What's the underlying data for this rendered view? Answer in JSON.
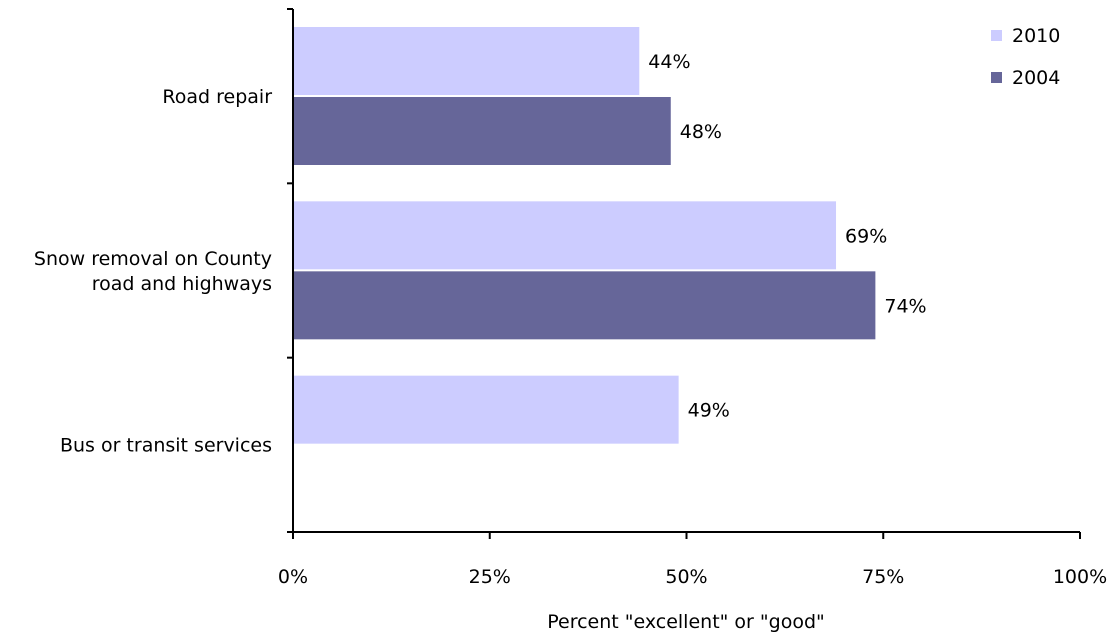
{
  "chart_data": {
    "type": "bar",
    "orientation": "horizontal",
    "categories": [
      [
        "Road repair"
      ],
      [
        "Snow removal on County",
        "road and highways"
      ],
      [
        "Bus or transit services"
      ]
    ],
    "series": [
      {
        "name": "2010",
        "color": "#ccccff",
        "values": [
          44,
          69,
          49
        ]
      },
      {
        "name": "2004",
        "color": "#666699",
        "values": [
          48,
          74,
          null
        ]
      }
    ],
    "data_labels": [
      [
        "44%",
        "69%",
        "49%"
      ],
      [
        "48%",
        "74%",
        ""
      ]
    ],
    "xlabel": "Percent \"excellent\" or \"good\"",
    "ylabel": "",
    "xlim": [
      0,
      100
    ],
    "x_ticks": [
      0,
      25,
      50,
      75,
      100
    ],
    "x_tick_labels": [
      "0%",
      "25%",
      "50%",
      "75%",
      "100%"
    ],
    "grid": false,
    "legend_position": "top-right"
  }
}
